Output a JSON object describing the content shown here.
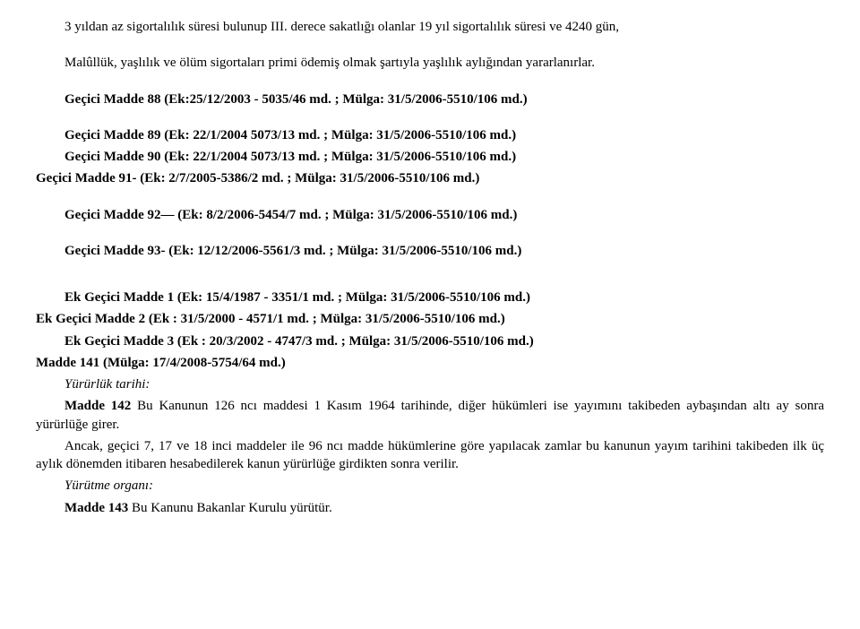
{
  "p1": "3 yıldan az sigortalılık süresi bulunup III. derece sakatlığı olanlar 19 yıl sigortalılık süresi ve 4240 gün,",
  "p2": "Malûllük, yaşlılık ve ölüm sigortaları primi ödemiş olmak şartıyla yaşlılık aylığından yararlanırlar.",
  "m88": "Geçici Madde 88 (Ek:25/12/2003 - 5035/46 md. ; Mülga: 31/5/2006-5510/106 md.)",
  "m89a": "Geçici Madde 89 (Ek: 22/1/2004 5073/13 md. ; Mülga: 31/5/2006-5510/106 md.)",
  "m90": "Geçici Madde 90 (Ek: 22/1/2004 5073/13 md. ; Mülga: 31/5/2006-5510/106 md.)",
  "m91": "Geçici Madde 91- (Ek: 2/7/2005-5386/2 md. ; Mülga: 31/5/2006-5510/106 md.)",
  "m92": "Geçici Madde 92— (Ek: 8/2/2006-5454/7 md. ; Mülga: 31/5/2006-5510/106 md.)",
  "m93": "Geçici Madde 93- (Ek: 12/12/2006-5561/3 md. ; Mülga: 31/5/2006-5510/106 md.)",
  "ek1": "Ek Geçici Madde 1 (Ek: 15/4/1987 - 3351/1 md. ; Mülga: 31/5/2006-5510/106 md.)",
  "ek2": "Ek Geçici Madde 2 (Ek : 31/5/2000 - 4571/1 md. ; Mülga: 31/5/2006-5510/106 md.)",
  "ek3": "Ek Geçici Madde 3 (Ek : 20/3/2002 - 4747/3 md. ; Mülga: 31/5/2006-5510/106 md.)",
  "m141": "Madde 141 (Mülga: 17/4/2008-5754/64 md.)",
  "yt": "Yürürlük tarihi:",
  "m142lead": "Madde 142 ",
  "m142body": "Bu Kanunun 126 ncı maddesi 1 Kasım 1964 tarihinde, diğer hükümleri ise yayımını takibeden aybaşından altı ay sonra yürürlüğe girer.",
  "p_ancak": "Ancak, geçici 7, 17 ve 18 inci maddeler ile 96 ncı madde hükümlerine göre yapılacak zamlar bu kanunun yayım tarihini takibeden ilk üç aylık dönemden itibaren hesabedilerek kanun yürürlüğe girdikten sonra verilir.",
  "yo": "Yürütme organı:",
  "m143lead": "Madde 143 ",
  "m143body": "Bu Kanunu Bakanlar Kurulu yürütür."
}
